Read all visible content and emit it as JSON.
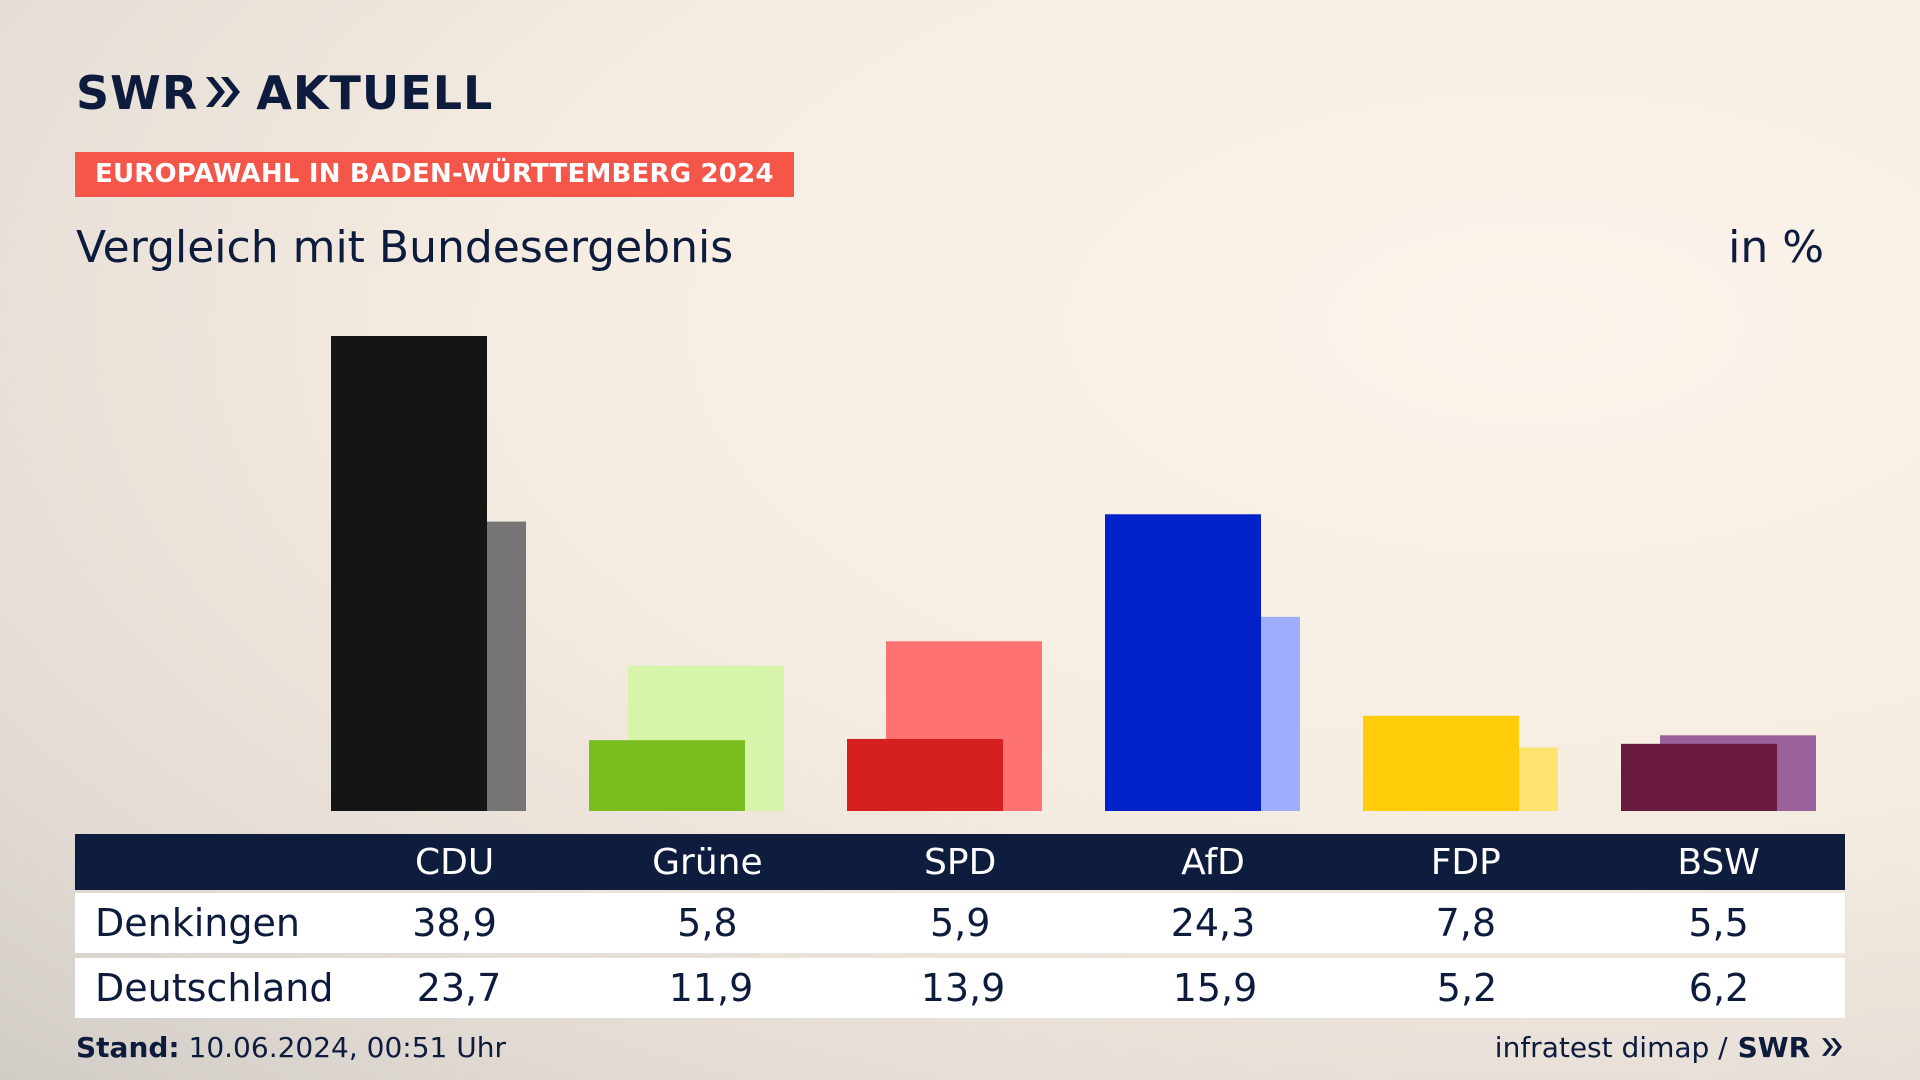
{
  "brand": {
    "logo_text_1": "SWR",
    "logo_text_2": "AKTUELL",
    "footer_brand": "SWR"
  },
  "header": {
    "tag": "EUROPAWAHL IN BADEN-WÜRTTEMBERG 2024",
    "subtitle": "Vergleich mit Bundesergebnis",
    "unit": "in %"
  },
  "colors": {
    "tag_bg": "#f4564a",
    "table_header_bg": "#0e1d3d",
    "text": "#0d1b3d"
  },
  "chart_data": {
    "type": "bar",
    "categories": [
      "CDU",
      "Grüne",
      "SPD",
      "AfD",
      "FDP",
      "BSW"
    ],
    "series": [
      {
        "name": "Denkingen",
        "values": [
          38.9,
          5.8,
          5.9,
          24.3,
          7.8,
          5.5
        ],
        "colors": [
          "#151515",
          "#79bd1e",
          "#d62020",
          "#0022c8",
          "#ffcc0a",
          "#6b1a3f"
        ]
      },
      {
        "name": "Deutschland",
        "values": [
          23.7,
          11.9,
          13.9,
          15.9,
          5.2,
          6.2
        ],
        "colors": [
          "#767474",
          "#d6f5aa",
          "#ff7272",
          "#9fadff",
          "#ffe370",
          "#9b619b"
        ]
      }
    ],
    "ylim": [
      0,
      38.9
    ]
  },
  "table": {
    "rows": [
      {
        "label": "Denkingen",
        "values": [
          "38,9",
          "5,8",
          "5,9",
          "24,3",
          "7,8",
          "5,5"
        ]
      },
      {
        "label": "Deutschland",
        "values": [
          "23,7",
          "11,9",
          "13,9",
          "15,9",
          "5,2",
          "6,2"
        ]
      }
    ]
  },
  "footer": {
    "stand_label": "Stand:",
    "stand_value": "10.06.2024, 00:51 Uhr",
    "source": "infratest dimap /"
  }
}
